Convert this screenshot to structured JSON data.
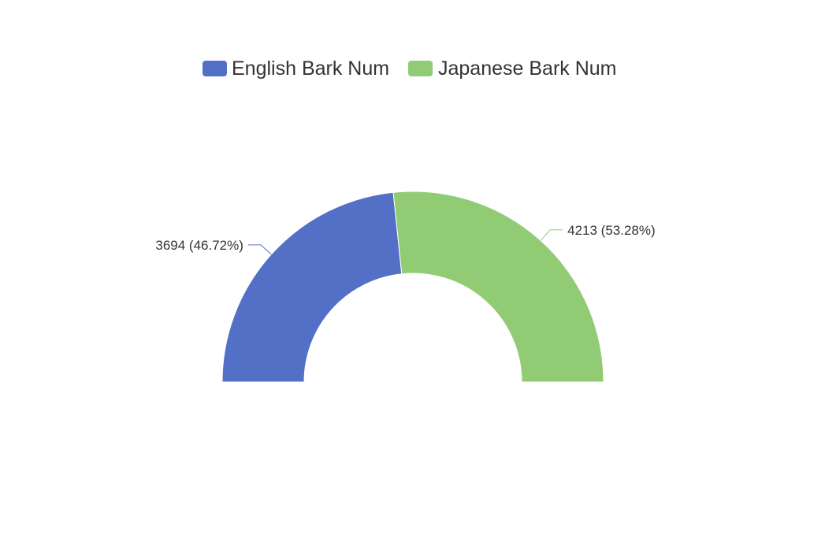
{
  "chart_data": {
    "type": "pie",
    "variant": "half-donut",
    "legend_position": "top-center",
    "series": [
      {
        "name": "English Bark Num",
        "value": 3694,
        "percent": 46.72,
        "label": "3694 (46.72%)",
        "color": "#5470c6"
      },
      {
        "name": "Japanese Bark Num",
        "value": 4213,
        "percent": 53.28,
        "label": "4213 (53.28%)",
        "color": "#91cc75"
      }
    ]
  }
}
